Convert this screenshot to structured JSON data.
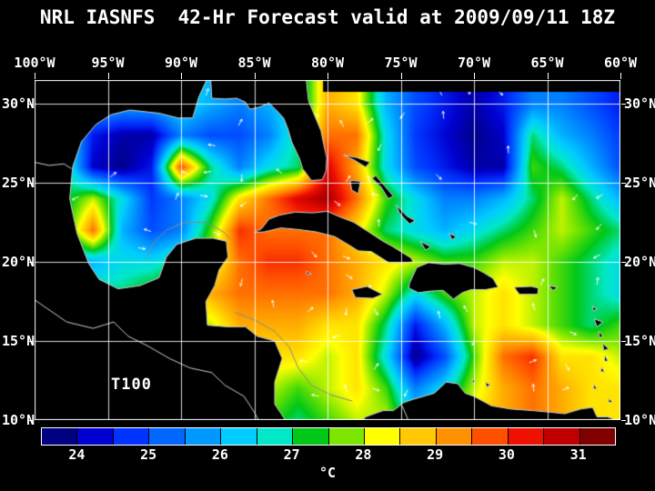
{
  "title": "NRL IASNFS  42-Hr Forecast valid at 2009/09/11 18Z",
  "map": {
    "annotation": "T100",
    "lon_labels": [
      "100°W",
      "95°W",
      "90°W",
      "85°W",
      "80°W",
      "75°W",
      "70°W",
      "65°W",
      "60°W"
    ],
    "lat_labels": [
      "30°N",
      "25°N",
      "20°N",
      "15°N",
      "10°N"
    ],
    "lat_values": [
      30,
      25,
      20,
      15,
      10
    ],
    "lon_range": [
      100,
      60
    ],
    "lat_range": [
      31.5,
      10
    ],
    "grid_lons": [
      95,
      90,
      85,
      80,
      75,
      70,
      65
    ],
    "grid_lats": [
      30,
      25,
      20,
      15
    ],
    "colors": {
      "background": "#000000",
      "frame": "#ffffff",
      "graticule": "#ffffff",
      "coastline": "#cccccc",
      "depth_contour": "#888888",
      "vectors": "#ffffff"
    }
  },
  "colorbar": {
    "unit": "°C",
    "labels": [
      "24",
      "25",
      "26",
      "27",
      "28",
      "29",
      "30",
      "31"
    ],
    "vmin": 23.5,
    "vmax": 31.5,
    "colors": [
      "#000080",
      "#0000d0",
      "#0033ff",
      "#0066ff",
      "#0099ff",
      "#00ccff",
      "#00e8c8",
      "#00c818",
      "#7ce600",
      "#ffff00",
      "#ffc800",
      "#ff9000",
      "#ff5000",
      "#f01000",
      "#c00000",
      "#800000"
    ]
  },
  "chart_data": {
    "type": "heatmap",
    "title": "NRL IASNFS 42-Hr Forecast valid at 2009/09/11 18Z",
    "variable": "T100",
    "units": "°C",
    "value_range": [
      23.5,
      31.5
    ],
    "x_lons": [
      100,
      98,
      96,
      94,
      92,
      90,
      88,
      86,
      84,
      82,
      80,
      78,
      76,
      74,
      72,
      70,
      68,
      66,
      64,
      62,
      60
    ],
    "y_lats": [
      30,
      28,
      26,
      24,
      22,
      20,
      18,
      16,
      14,
      12,
      10
    ],
    "values": [
      [
        26,
        26,
        26,
        26,
        26,
        26.5,
        26,
        25.5,
        26,
        26.5,
        29,
        28.5,
        26,
        25,
        24.5,
        24,
        24.5,
        25.5,
        25.5,
        25,
        24.5
      ],
      [
        27,
        26.8,
        24.5,
        24,
        24,
        25.5,
        25,
        25,
        25.5,
        27,
        29.5,
        29.5,
        26.5,
        24.8,
        24.3,
        23.8,
        24.2,
        27,
        26,
        25.5,
        24.8
      ],
      [
        26.5,
        27.2,
        24.2,
        23.8,
        24.5,
        29.8,
        27,
        25.5,
        26.5,
        27,
        30.5,
        29,
        26.5,
        25,
        24.5,
        24,
        24,
        27.5,
        27,
        26,
        25
      ],
      [
        25.5,
        27,
        28,
        26.5,
        24.8,
        25.5,
        26.5,
        28.5,
        29.5,
        30.5,
        31,
        29.5,
        27.5,
        26.5,
        25.5,
        25.5,
        26,
        27,
        28,
        27,
        26
      ],
      [
        26,
        27,
        29.5,
        26,
        25,
        25.5,
        27.5,
        30,
        29.5,
        29.5,
        29.5,
        28.5,
        27,
        26.5,
        26,
        26.5,
        27,
        27.5,
        28,
        27.5,
        27
      ],
      [
        26,
        26,
        26,
        26.5,
        26.5,
        27,
        28,
        29.5,
        30,
        30,
        29.5,
        29,
        28.5,
        28,
        27.5,
        27.5,
        28,
        28,
        27.5,
        27,
        26.5
      ],
      [
        27,
        27,
        27,
        27,
        27.5,
        28,
        29,
        29.5,
        29.5,
        29.5,
        29.5,
        29,
        28,
        26.5,
        27.5,
        28,
        28.5,
        28,
        27.5,
        27,
        26.5
      ],
      [
        27.5,
        27.5,
        27.5,
        27.5,
        28,
        28.5,
        28,
        29,
        29,
        29,
        28.5,
        28.5,
        27,
        24.5,
        26,
        28,
        28.5,
        28,
        27.5,
        27,
        27.5
      ],
      [
        28,
        28,
        28,
        28,
        28,
        28.5,
        28.5,
        28.5,
        28.5,
        28.5,
        28,
        28.5,
        26.5,
        23.8,
        25,
        27.5,
        29.5,
        30,
        28.5,
        28.5,
        28
      ],
      [
        28,
        28,
        28,
        28,
        28,
        28,
        28.5,
        28,
        28,
        27.5,
        28,
        28.5,
        27.5,
        25.5,
        26.5,
        28,
        29,
        29.5,
        29,
        28.5,
        28.5
      ],
      [
        27.5,
        27.5,
        27.5,
        27.5,
        27.5,
        27.5,
        27.5,
        28,
        27.5,
        27,
        27.5,
        28,
        28,
        26.5,
        27,
        28.5,
        29,
        29.5,
        29,
        28.5,
        28.5
      ]
    ]
  },
  "land": {
    "polygons": {
      "north_america": [
        [
          101,
          32
        ],
        [
          88,
          32
        ],
        [
          88.8,
          30.4
        ],
        [
          89.2,
          29.1
        ],
        [
          90.2,
          29.1
        ],
        [
          91.5,
          29.4
        ],
        [
          93.5,
          29.6
        ],
        [
          94.8,
          29.3
        ],
        [
          95.8,
          28.7
        ],
        [
          96.8,
          27.6
        ],
        [
          97.4,
          26.0
        ],
        [
          97.6,
          24.0
        ],
        [
          97.1,
          21.8
        ],
        [
          96.3,
          19.9
        ],
        [
          95.6,
          18.9
        ],
        [
          94.3,
          18.3
        ],
        [
          92.8,
          18.5
        ],
        [
          91.5,
          19.0
        ],
        [
          91.0,
          20.3
        ],
        [
          90.3,
          21.1
        ],
        [
          89.0,
          21.5
        ],
        [
          87.8,
          21.5
        ],
        [
          86.9,
          21.3
        ],
        [
          86.8,
          20.3
        ],
        [
          87.4,
          19.5
        ],
        [
          87.7,
          18.5
        ],
        [
          88.3,
          17.5
        ],
        [
          88.2,
          16.0
        ],
        [
          86.9,
          15.9
        ],
        [
          85.6,
          15.9
        ],
        [
          84.8,
          15.3
        ],
        [
          83.6,
          15.0
        ],
        [
          83.1,
          13.9
        ],
        [
          83.6,
          12.4
        ],
        [
          83.6,
          11.0
        ],
        [
          82.8,
          9.9
        ],
        [
          82.2,
          8.5
        ],
        [
          101,
          8.5
        ]
      ],
      "florida": [
        [
          88,
          32
        ],
        [
          87.9,
          30.35
        ],
        [
          87.0,
          30.3
        ],
        [
          86.2,
          30.35
        ],
        [
          85.6,
          30.1
        ],
        [
          85.3,
          29.65
        ],
        [
          84.6,
          29.8
        ],
        [
          84.0,
          30.05
        ],
        [
          83.5,
          29.6
        ],
        [
          83.0,
          29.1
        ],
        [
          82.7,
          28.4
        ],
        [
          82.45,
          27.6
        ],
        [
          81.9,
          26.5
        ],
        [
          81.7,
          25.9
        ],
        [
          81.1,
          25.15
        ],
        [
          80.35,
          25.2
        ],
        [
          80.1,
          25.75
        ],
        [
          80.05,
          26.6
        ],
        [
          80.25,
          27.4
        ],
        [
          80.45,
          28.3
        ],
        [
          80.9,
          29.3
        ],
        [
          81.3,
          30.2
        ],
        [
          81.5,
          32
        ]
      ],
      "cuba": [
        [
          85.0,
          21.85
        ],
        [
          84.5,
          22.1
        ],
        [
          84.0,
          22.7
        ],
        [
          83.3,
          22.95
        ],
        [
          82.2,
          23.15
        ],
        [
          81.0,
          23.1
        ],
        [
          80.0,
          23.2
        ],
        [
          79.3,
          22.9
        ],
        [
          78.2,
          22.5
        ],
        [
          77.2,
          21.9
        ],
        [
          76.2,
          21.3
        ],
        [
          75.6,
          21.0
        ],
        [
          74.3,
          20.25
        ],
        [
          74.15,
          20.0
        ],
        [
          74.8,
          19.95
        ],
        [
          75.8,
          19.95
        ],
        [
          77.0,
          20.65
        ],
        [
          77.9,
          20.7
        ],
        [
          78.5,
          21.05
        ],
        [
          79.5,
          21.6
        ],
        [
          80.8,
          21.9
        ],
        [
          82.0,
          22.05
        ],
        [
          83.2,
          22.15
        ],
        [
          84.3,
          21.9
        ]
      ],
      "hispaniola": [
        [
          74.45,
          18.35
        ],
        [
          74.4,
          18.65
        ],
        [
          73.9,
          19.65
        ],
        [
          73.1,
          19.95
        ],
        [
          72.0,
          19.85
        ],
        [
          71.0,
          19.9
        ],
        [
          70.0,
          19.65
        ],
        [
          69.3,
          19.3
        ],
        [
          68.7,
          18.95
        ],
        [
          68.35,
          18.4
        ],
        [
          69.2,
          18.25
        ],
        [
          70.2,
          18.25
        ],
        [
          70.8,
          18.05
        ],
        [
          71.4,
          17.65
        ],
        [
          72.1,
          18.2
        ],
        [
          73.0,
          18.15
        ],
        [
          73.8,
          18.05
        ]
      ],
      "jamaica": [
        [
          78.35,
          18.25
        ],
        [
          77.3,
          18.45
        ],
        [
          76.25,
          17.95
        ],
        [
          76.9,
          17.7
        ],
        [
          78.1,
          17.75
        ]
      ],
      "puerto_rico": [
        [
          67.25,
          18.4
        ],
        [
          66.1,
          18.45
        ],
        [
          65.6,
          18.35
        ],
        [
          65.65,
          17.95
        ],
        [
          66.9,
          17.95
        ]
      ],
      "south_america": [
        [
          79,
          8.5
        ],
        [
          77.4,
          10.2
        ],
        [
          76.2,
          10.6
        ],
        [
          75.5,
          10.6
        ],
        [
          74.8,
          11.1
        ],
        [
          74.2,
          11.3
        ],
        [
          72.7,
          11.7
        ],
        [
          71.9,
          12.4
        ],
        [
          71.1,
          12.3
        ],
        [
          70.6,
          11.7
        ],
        [
          70.0,
          11.5
        ],
        [
          68.8,
          10.9
        ],
        [
          67.5,
          10.7
        ],
        [
          66.0,
          10.6
        ],
        [
          64.8,
          10.5
        ],
        [
          63.8,
          10.4
        ],
        [
          62.7,
          10.7
        ],
        [
          61.9,
          10.8
        ],
        [
          61.6,
          10.2
        ],
        [
          60.9,
          10.2
        ],
        [
          59.5,
          9.8
        ],
        [
          59.5,
          8.5
        ]
      ]
    },
    "islets": [
      [
        [
          78.9,
          26.75
        ],
        [
          78.0,
          26.6
        ],
        [
          77.1,
          26.3
        ],
        [
          77.4,
          26.0
        ],
        [
          78.2,
          26.45
        ]
      ],
      [
        [
          78.45,
          25.15
        ],
        [
          77.75,
          25.1
        ],
        [
          77.9,
          24.3
        ],
        [
          78.35,
          24.55
        ]
      ],
      [
        [
          76.7,
          25.45
        ],
        [
          76.1,
          24.8
        ],
        [
          75.5,
          24.15
        ],
        [
          75.85,
          24.0
        ],
        [
          76.35,
          24.75
        ],
        [
          76.95,
          25.3
        ]
      ],
      [
        [
          75.3,
          23.6
        ],
        [
          74.6,
          22.9
        ],
        [
          74.0,
          22.6
        ],
        [
          74.4,
          22.4
        ],
        [
          75.1,
          23.1
        ]
      ],
      [
        [
          73.65,
          21.3
        ],
        [
          72.95,
          20.95
        ],
        [
          73.3,
          20.75
        ]
      ],
      [
        [
          71.7,
          21.8
        ],
        [
          71.2,
          21.6
        ],
        [
          71.5,
          21.4
        ]
      ],
      [
        [
          64.9,
          18.5
        ],
        [
          64.3,
          18.4
        ],
        [
          64.6,
          18.2
        ]
      ],
      [
        [
          61.9,
          17.2
        ],
        [
          61.6,
          17.0
        ],
        [
          61.85,
          16.9
        ]
      ],
      [
        [
          61.8,
          16.4
        ],
        [
          61.2,
          16.2
        ],
        [
          61.6,
          15.9
        ]
      ],
      [
        [
          61.45,
          15.6
        ],
        [
          61.2,
          15.3
        ],
        [
          61.45,
          15.2
        ]
      ],
      [
        [
          61.2,
          14.85
        ],
        [
          60.8,
          14.5
        ],
        [
          61.15,
          14.4
        ]
      ],
      [
        [
          61.05,
          14.1
        ],
        [
          60.85,
          13.7
        ],
        [
          61.1,
          13.75
        ]
      ],
      [
        [
          61.25,
          13.35
        ],
        [
          61.1,
          13.0
        ],
        [
          61.35,
          13.1
        ]
      ],
      [
        [
          61.8,
          12.25
        ],
        [
          61.6,
          11.95
        ],
        [
          61.85,
          12.0
        ]
      ],
      [
        [
          60.8,
          11.35
        ],
        [
          60.55,
          11.15
        ],
        [
          60.8,
          11.1
        ]
      ],
      [
        [
          70.1,
          12.6
        ],
        [
          69.9,
          12.4
        ],
        [
          70.1,
          12.35
        ]
      ],
      [
        [
          69.2,
          12.4
        ],
        [
          68.9,
          12.2
        ],
        [
          69.15,
          12.1
        ]
      ],
      [
        [
          81.45,
          19.4
        ],
        [
          81.1,
          19.25
        ],
        [
          81.4,
          19.2
        ]
      ]
    ],
    "lines": [
      [
        [
          100,
          17.6
        ],
        [
          97.8,
          16.2
        ],
        [
          96.0,
          15.8
        ],
        [
          94.6,
          16.2
        ],
        [
          93.6,
          15.3
        ],
        [
          92.3,
          14.7
        ],
        [
          90.8,
          13.9
        ],
        [
          89.4,
          13.3
        ],
        [
          87.9,
          13.0
        ],
        [
          87.0,
          12.2
        ],
        [
          85.7,
          11.5
        ],
        [
          85.0,
          10.5
        ],
        [
          84.6,
          9.8
        ]
      ],
      [
        [
          100,
          26.3
        ],
        [
          99.0,
          26.1
        ],
        [
          98.0,
          26.2
        ],
        [
          97.5,
          25.9
        ]
      ],
      [
        [
          74.9,
          10.9
        ],
        [
          74.55,
          10.15
        ],
        [
          74.4,
          9.6
        ]
      ]
    ],
    "contours": [
      [
        [
          92.4,
          20.2
        ],
        [
          91.9,
          21.2
        ],
        [
          91.0,
          22.0
        ],
        [
          89.8,
          22.5
        ],
        [
          88.3,
          22.5
        ],
        [
          87.1,
          21.9
        ],
        [
          86.6,
          21.4
        ]
      ],
      [
        [
          86.3,
          16.8
        ],
        [
          84.9,
          16.3
        ],
        [
          83.6,
          15.6
        ],
        [
          82.6,
          14.6
        ],
        [
          82.0,
          13.3
        ],
        [
          81.1,
          12.2
        ],
        [
          79.8,
          11.6
        ],
        [
          78.3,
          11.2
        ]
      ]
    ]
  }
}
